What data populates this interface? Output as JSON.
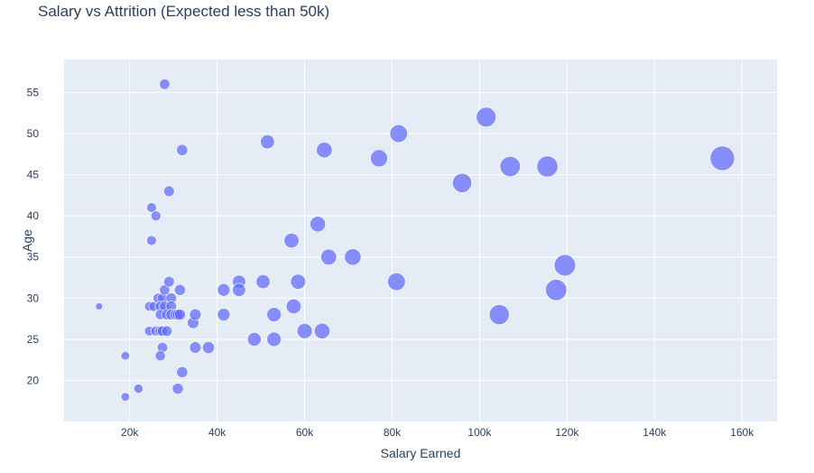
{
  "chart_data": {
    "type": "scatter",
    "title": "Salary vs Attrition (Expected less than 50k)",
    "xlabel": "Salary Earned",
    "ylabel": "Age",
    "xlim": [
      5000,
      168000
    ],
    "ylim": [
      15,
      59
    ],
    "x_ticks": [
      20000,
      40000,
      60000,
      80000,
      100000,
      120000,
      140000,
      160000
    ],
    "x_tick_labels": [
      "20k",
      "40k",
      "60k",
      "80k",
      "100k",
      "120k",
      "140k",
      "160k"
    ],
    "y_ticks": [
      20,
      25,
      30,
      35,
      40,
      45,
      50,
      55
    ],
    "y_tick_labels": [
      "20",
      "25",
      "30",
      "35",
      "40",
      "45",
      "50",
      "55"
    ],
    "grid": true,
    "bubble_size": "salary",
    "colors": {
      "marker": "#636efa",
      "plot_bg": "#e5ecf6",
      "grid": "#ffffff",
      "text": "#2a3f5f"
    },
    "points": [
      {
        "x": 28000,
        "y": 56
      },
      {
        "x": 32000,
        "y": 48
      },
      {
        "x": 29000,
        "y": 43
      },
      {
        "x": 25000,
        "y": 41
      },
      {
        "x": 26000,
        "y": 40
      },
      {
        "x": 25000,
        "y": 37
      },
      {
        "x": 13000,
        "y": 29
      },
      {
        "x": 19000,
        "y": 23
      },
      {
        "x": 19000,
        "y": 18
      },
      {
        "x": 22000,
        "y": 19
      },
      {
        "x": 24500,
        "y": 29
      },
      {
        "x": 25500,
        "y": 29
      },
      {
        "x": 26500,
        "y": 30
      },
      {
        "x": 27500,
        "y": 30
      },
      {
        "x": 28000,
        "y": 31
      },
      {
        "x": 29000,
        "y": 32
      },
      {
        "x": 29500,
        "y": 30
      },
      {
        "x": 27000,
        "y": 29
      },
      {
        "x": 28000,
        "y": 29
      },
      {
        "x": 29500,
        "y": 29
      },
      {
        "x": 27000,
        "y": 28
      },
      {
        "x": 28500,
        "y": 28
      },
      {
        "x": 29500,
        "y": 28
      },
      {
        "x": 30500,
        "y": 28
      },
      {
        "x": 31000,
        "y": 28
      },
      {
        "x": 31500,
        "y": 28
      },
      {
        "x": 24500,
        "y": 26
      },
      {
        "x": 26000,
        "y": 26
      },
      {
        "x": 27000,
        "y": 26
      },
      {
        "x": 27500,
        "y": 26
      },
      {
        "x": 28500,
        "y": 26
      },
      {
        "x": 27500,
        "y": 24
      },
      {
        "x": 27000,
        "y": 23
      },
      {
        "x": 31500,
        "y": 31
      },
      {
        "x": 32000,
        "y": 21
      },
      {
        "x": 31000,
        "y": 19
      },
      {
        "x": 34500,
        "y": 27
      },
      {
        "x": 35000,
        "y": 28
      },
      {
        "x": 35000,
        "y": 24
      },
      {
        "x": 38000,
        "y": 24
      },
      {
        "x": 41500,
        "y": 31
      },
      {
        "x": 41500,
        "y": 28
      },
      {
        "x": 45000,
        "y": 32
      },
      {
        "x": 45000,
        "y": 31
      },
      {
        "x": 48500,
        "y": 25
      },
      {
        "x": 50500,
        "y": 32
      },
      {
        "x": 51500,
        "y": 49
      },
      {
        "x": 53000,
        "y": 28
      },
      {
        "x": 53000,
        "y": 25
      },
      {
        "x": 57000,
        "y": 37
      },
      {
        "x": 57500,
        "y": 29
      },
      {
        "x": 58500,
        "y": 32
      },
      {
        "x": 60000,
        "y": 26
      },
      {
        "x": 63000,
        "y": 39
      },
      {
        "x": 64000,
        "y": 26
      },
      {
        "x": 64500,
        "y": 48
      },
      {
        "x": 65500,
        "y": 35
      },
      {
        "x": 71000,
        "y": 35
      },
      {
        "x": 77000,
        "y": 47
      },
      {
        "x": 81000,
        "y": 32
      },
      {
        "x": 81500,
        "y": 50
      },
      {
        "x": 96000,
        "y": 44
      },
      {
        "x": 101500,
        "y": 52
      },
      {
        "x": 104500,
        "y": 28
      },
      {
        "x": 107000,
        "y": 46
      },
      {
        "x": 115500,
        "y": 46
      },
      {
        "x": 117500,
        "y": 31
      },
      {
        "x": 119500,
        "y": 34
      },
      {
        "x": 155500,
        "y": 47
      }
    ]
  }
}
